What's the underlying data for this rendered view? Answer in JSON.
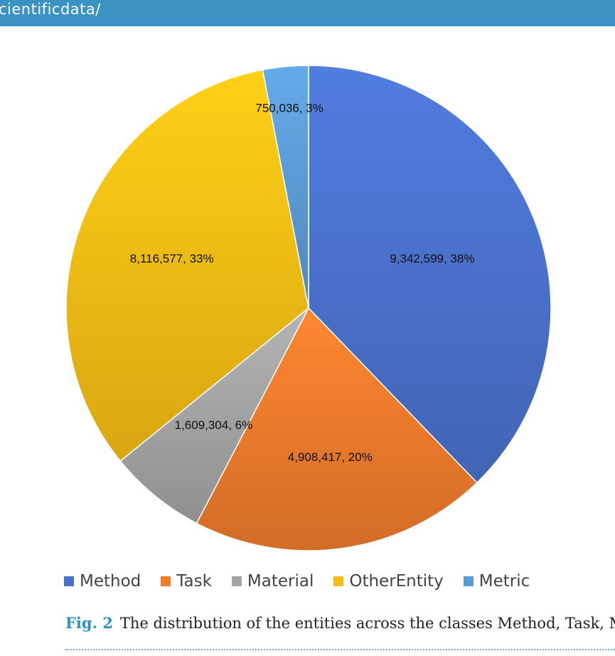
{
  "header": {
    "text": "cientificdata/"
  },
  "chart_data": {
    "type": "pie",
    "slices": [
      {
        "name": "Method",
        "value": 9342599,
        "percent": 38,
        "label": "9,342,599, 38%",
        "color": "#4a72cc"
      },
      {
        "name": "Task",
        "value": 4908417,
        "percent": 20,
        "label": "4,908,417, 20%",
        "color": "#ef7b2c"
      },
      {
        "name": "Material",
        "value": 1609304,
        "percent": 6,
        "label": "1,609,304, 6%",
        "color": "#a4a4a4"
      },
      {
        "name": "OtherEntity",
        "value": 8116577,
        "percent": 33,
        "label": "8,116,577, 33%",
        "color": "#f7bd14"
      },
      {
        "name": "Metric",
        "value": 750036,
        "percent": 3,
        "label": "750,036, 3%",
        "color": "#5b9bd5"
      }
    ],
    "start_angle": "12 o'clock",
    "direction": "clockwise",
    "legend_position": "bottom"
  },
  "caption": {
    "label": "Fig. 2",
    "text": "The distribution of the entities across the classes Method, Task, M"
  }
}
